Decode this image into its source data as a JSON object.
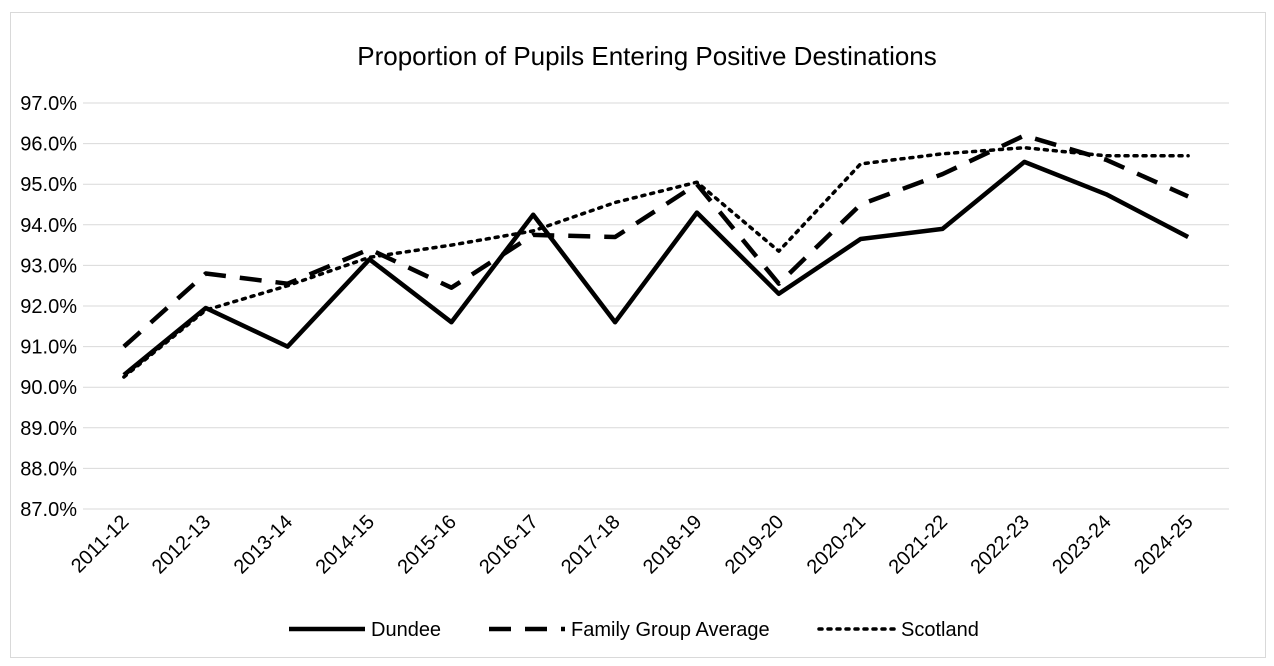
{
  "chart_data": {
    "type": "line",
    "title": "Proportion of Pupils Entering Positive Destinations",
    "xlabel": "",
    "ylabel": "",
    "categories": [
      "2011-12",
      "2012-13",
      "2013-14",
      "2014-15",
      "2015-16",
      "2016-17",
      "2017-18",
      "2018-19",
      "2019-20",
      "2020-21",
      "2021-22",
      "2022-23",
      "2023-24",
      "2024-25"
    ],
    "ylim": [
      87.0,
      97.0
    ],
    "yticks": [
      "97.0%",
      "96.0%",
      "95.0%",
      "94.0%",
      "93.0%",
      "92.0%",
      "91.0%",
      "90.0%",
      "89.0%",
      "88.0%",
      "87.0%"
    ],
    "grid": true,
    "legend_position": "bottom",
    "series": [
      {
        "name": "Dundee",
        "style": "solid",
        "color": "#000000",
        "values": [
          90.3,
          91.95,
          91.0,
          93.15,
          91.6,
          94.25,
          91.6,
          94.3,
          92.3,
          93.65,
          93.9,
          95.55,
          94.75,
          93.7
        ]
      },
      {
        "name": "Family Group Average",
        "style": "dashed",
        "color": "#000000",
        "values": [
          91.0,
          92.8,
          92.55,
          93.4,
          92.45,
          93.75,
          93.7,
          95.0,
          92.55,
          94.5,
          95.25,
          96.2,
          95.6,
          94.7
        ]
      },
      {
        "name": "Scotland",
        "style": "dotted",
        "color": "#000000",
        "values": [
          90.25,
          91.9,
          92.5,
          93.2,
          93.5,
          93.85,
          94.55,
          95.05,
          93.35,
          95.5,
          95.75,
          95.9,
          95.7,
          95.7
        ]
      }
    ]
  }
}
